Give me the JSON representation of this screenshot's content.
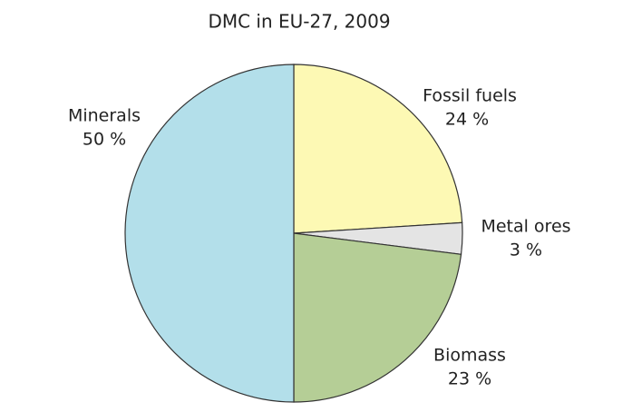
{
  "chart_data": {
    "type": "pie",
    "title": "DMC in EU-27, 2009",
    "categories": [
      "Fossil fuels",
      "Metal ores",
      "Biomass",
      "Minerals"
    ],
    "values": [
      24,
      3,
      23,
      50
    ],
    "value_labels": [
      "24 %",
      "3 %",
      "23 %",
      "50 %"
    ],
    "colors": [
      "#fdf9b4",
      "#e4e4e4",
      "#b5ce96",
      "#b3dfea"
    ]
  }
}
